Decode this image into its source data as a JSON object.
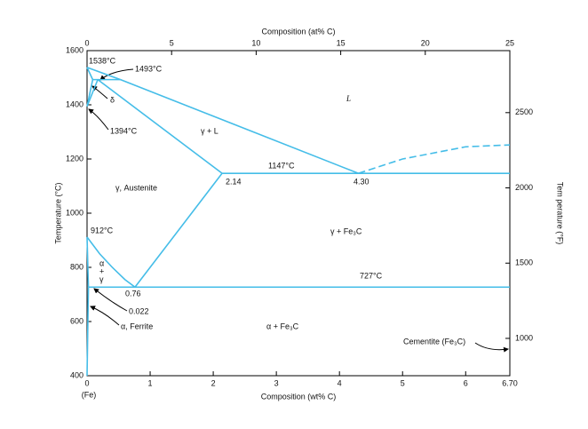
{
  "chart_data": {
    "type": "line",
    "x_label": "Composition (wt% C)",
    "x2_label": "Composition (at% C)",
    "y_label": "Temperature (°C)",
    "y2_label": "Tem perature (°F)",
    "x_origin_label": "(Fe)",
    "xlim": [
      0,
      6.7
    ],
    "xticks": [
      0,
      1,
      2,
      3,
      4,
      5,
      6,
      {
        "value": 6.7,
        "label": "6.70"
      }
    ],
    "x2lim": [
      0,
      25
    ],
    "x2ticks": [
      0,
      5,
      10,
      15,
      20,
      25
    ],
    "ylim": [
      400,
      1600
    ],
    "yticks": [
      400,
      600,
      800,
      1000,
      1200,
      1400,
      1600
    ],
    "y2lim": [
      752,
      2912
    ],
    "y2ticks": [
      1000,
      1500,
      2000,
      2500
    ],
    "color": "#45bde8",
    "series": [
      {
        "x": [
          0,
          0.53
        ],
        "values": [
          1538,
          1493
        ]
      },
      {
        "x": [
          0.53,
          4.3
        ],
        "values": [
          1493,
          1147
        ]
      },
      {
        "x": [
          0.09,
          0.53
        ],
        "values": [
          1493,
          1493
        ]
      },
      {
        "x": [
          0,
          0.09
        ],
        "values": [
          1538,
          1493
        ]
      },
      {
        "x": [
          0,
          0.09
        ],
        "values": [
          1394,
          1493
        ]
      },
      {
        "x": [
          0,
          0.17
        ],
        "values": [
          1394,
          1493
        ]
      },
      {
        "x": [
          0.17,
          2.14
        ],
        "values": [
          1493,
          1147
        ]
      },
      {
        "x": [
          2.14,
          6.7
        ],
        "values": [
          1147,
          1147
        ]
      },
      {
        "x": [
          2.14,
          0.76
        ],
        "values": [
          1147,
          727
        ]
      },
      {
        "x": [
          0,
          0.2,
          0.4,
          0.6,
          0.76
        ],
        "values": [
          912,
          850,
          800,
          755,
          727
        ]
      },
      {
        "x": [
          0,
          0.022
        ],
        "values": [
          912,
          727
        ]
      },
      {
        "x": [
          0.022,
          6.7
        ],
        "values": [
          727,
          727
        ]
      },
      {
        "x": [
          0.022,
          0
        ],
        "values": [
          727,
          400
        ]
      },
      {
        "x": [
          4.3,
          5,
          6,
          6.7
        ],
        "values": [
          1147,
          1200,
          1245,
          1252
        ],
        "dashed": true
      }
    ],
    "annotations": [
      "1538°C",
      "1493°C",
      "δ",
      "1394°C",
      "γ + L",
      "L",
      "1147°C",
      "2.14",
      "4.30",
      "γ, Austenite",
      "912°C",
      "γ + Fe₃C",
      "α",
      "+",
      "γ",
      "727°C",
      "0.76",
      "0.022",
      "α, Ferrite",
      "α + Fe₃C",
      "Cementite (Fe₃C)"
    ]
  }
}
